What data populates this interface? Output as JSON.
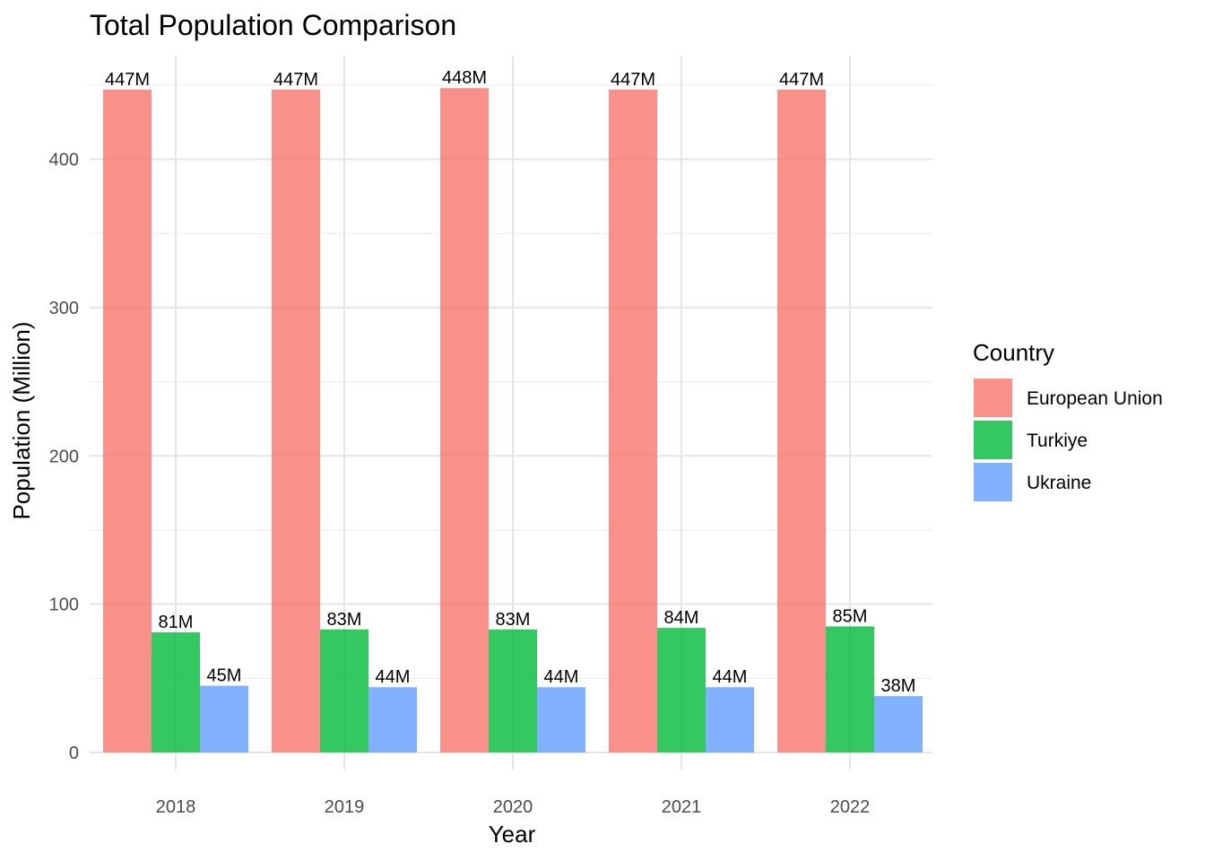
{
  "chart_data": {
    "type": "bar",
    "title": "Total Population Comparison",
    "xlabel": "Year",
    "ylabel": "Population (Million)",
    "categories": [
      "2018",
      "2019",
      "2020",
      "2021",
      "2022"
    ],
    "ylim": [
      0,
      470
    ],
    "y_ticks": [
      0,
      100,
      200,
      300,
      400
    ],
    "grid": true,
    "legend_title": "Country",
    "legend_position": "right",
    "series": [
      {
        "name": "European Union",
        "color": "#F8766D",
        "values": [
          447,
          447,
          448,
          447,
          447
        ],
        "labels": [
          "447M",
          "447M",
          "448M",
          "447M",
          "447M"
        ]
      },
      {
        "name": "Turkiye",
        "color": "#00BA38",
        "values": [
          81,
          83,
          83,
          84,
          85
        ],
        "labels": [
          "81M",
          "83M",
          "83M",
          "84M",
          "85M"
        ]
      },
      {
        "name": "Ukraine",
        "color": "#619CFF",
        "values": [
          45,
          44,
          44,
          44,
          38
        ],
        "labels": [
          "45M",
          "44M",
          "44M",
          "44M",
          "38M"
        ]
      }
    ]
  }
}
